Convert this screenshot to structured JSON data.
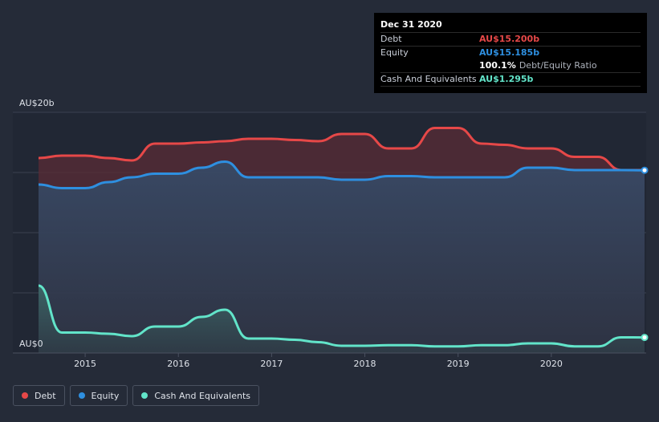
{
  "tooltip": {
    "date": "Dec 31 2020",
    "debt_label": "Debt",
    "debt_value": "AU$15.200b",
    "equity_label": "Equity",
    "equity_value": "AU$15.185b",
    "ratio_value": "100.1%",
    "ratio_label": "Debt/Equity Ratio",
    "cash_label": "Cash And Equivalents",
    "cash_value": "AU$1.295b"
  },
  "legend": {
    "debt": "Debt",
    "equity": "Equity",
    "cash": "Cash And Equivalents"
  },
  "colors": {
    "debt": "#e64848",
    "equity": "#2e8fe0",
    "cash": "#62e4c9"
  },
  "chart_data": {
    "type": "area",
    "y_tick_labels": [
      "AU$20b",
      "AU$0"
    ],
    "ylim": [
      0,
      20
    ],
    "xlim": [
      2014.5,
      2021.0
    ],
    "x_tick_labels": [
      "2015",
      "2016",
      "2017",
      "2018",
      "2019",
      "2020"
    ],
    "x_ticks": [
      2015,
      2016,
      2017,
      2018,
      2019,
      2020
    ],
    "grid": true,
    "legend_position": "bottom-left",
    "series": [
      {
        "name": "Debt",
        "x": [
          2014.5,
          2014.75,
          2015.0,
          2015.25,
          2015.5,
          2015.75,
          2016.0,
          2016.25,
          2016.5,
          2016.75,
          2017.0,
          2017.25,
          2017.5,
          2017.75,
          2018.0,
          2018.25,
          2018.5,
          2018.75,
          2019.0,
          2019.25,
          2019.5,
          2019.75,
          2020.0,
          2020.25,
          2020.5,
          2020.75,
          2021.0
        ],
        "values": [
          16.2,
          16.4,
          16.4,
          16.2,
          16.0,
          17.4,
          17.4,
          17.5,
          17.6,
          17.8,
          17.8,
          17.7,
          17.6,
          18.2,
          18.2,
          17.0,
          17.0,
          18.7,
          18.7,
          17.4,
          17.3,
          17.0,
          17.0,
          16.3,
          16.3,
          15.2,
          15.2
        ]
      },
      {
        "name": "Equity",
        "x": [
          2014.5,
          2014.75,
          2015.0,
          2015.25,
          2015.5,
          2015.75,
          2016.0,
          2016.25,
          2016.5,
          2016.75,
          2017.0,
          2017.25,
          2017.5,
          2017.75,
          2018.0,
          2018.25,
          2018.5,
          2018.75,
          2019.0,
          2019.25,
          2019.5,
          2019.75,
          2020.0,
          2020.25,
          2020.5,
          2020.75,
          2021.0
        ],
        "values": [
          14.0,
          13.7,
          13.7,
          14.2,
          14.6,
          14.9,
          14.9,
          15.4,
          15.9,
          14.6,
          14.6,
          14.6,
          14.6,
          14.4,
          14.4,
          14.7,
          14.7,
          14.6,
          14.6,
          14.6,
          14.6,
          15.4,
          15.4,
          15.2,
          15.2,
          15.2,
          15.185
        ]
      },
      {
        "name": "Cash And Equivalents",
        "x": [
          2014.5,
          2014.75,
          2015.0,
          2015.25,
          2015.5,
          2015.75,
          2016.0,
          2016.25,
          2016.5,
          2016.75,
          2017.0,
          2017.25,
          2017.5,
          2017.75,
          2018.0,
          2018.25,
          2018.5,
          2018.75,
          2019.0,
          2019.25,
          2019.5,
          2019.75,
          2020.0,
          2020.25,
          2020.5,
          2020.75,
          2021.0
        ],
        "values": [
          5.6,
          1.7,
          1.7,
          1.6,
          1.4,
          2.2,
          2.2,
          3.0,
          3.6,
          1.2,
          1.2,
          1.1,
          0.9,
          0.6,
          0.6,
          0.65,
          0.65,
          0.55,
          0.55,
          0.65,
          0.65,
          0.8,
          0.8,
          0.55,
          0.55,
          1.3,
          1.295
        ]
      }
    ]
  }
}
